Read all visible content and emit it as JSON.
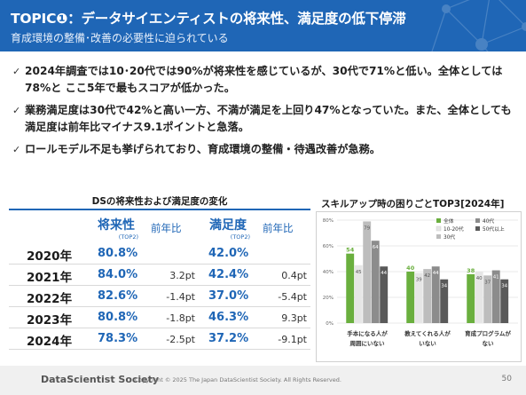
{
  "header": {
    "title": "TOPIC❶：データサイエンティストの将来性、満足度の低下停滞",
    "subtitle": "育成環境の整備･改善の必要性に迫られている"
  },
  "bullets": [
    "2024年調査では10･20代では90%が将来性を感じているが、30代で71%と低い。全体としては78%と ここ5年で最もスコアが低かった。",
    "業務満足度は30代で42%と高い一方、不満が満足を上回り47%となっていた。また、全体としても満足度は前年比マイナス9.1ポイントと急落。",
    "ロールモデル不足も挙げられており、育成環境の整備・待遇改善が急務。"
  ],
  "table": {
    "title": "DSの将来性および満足度の変化",
    "headers": {
      "future": "将来性",
      "future_sub": "(TOP2)",
      "yoy1": "前年比",
      "satisfaction": "満足度",
      "satisfaction_sub": "(TOP2)",
      "yoy2": "前年比"
    },
    "rows": [
      {
        "year": "2020年",
        "future": "80.8%",
        "yoy1": "",
        "satisfaction": "42.0%",
        "yoy2": ""
      },
      {
        "year": "2021年",
        "future": "84.0%",
        "yoy1": "3.2pt",
        "satisfaction": "42.4%",
        "yoy2": "0.4pt"
      },
      {
        "year": "2022年",
        "future": "82.6%",
        "yoy1": "-1.4pt",
        "satisfaction": "37.0%",
        "yoy2": "-5.4pt"
      },
      {
        "year": "2023年",
        "future": "80.8%",
        "yoy1": "-1.8pt",
        "satisfaction": "46.3%",
        "yoy2": "9.3pt"
      },
      {
        "year": "2024年",
        "future": "78.3%",
        "yoy1": "-2.5pt",
        "satisfaction": "37.2%",
        "yoy2": "-9.1pt"
      }
    ]
  },
  "chart_data": {
    "type": "bar",
    "title": "スキルアップ時の困りごとTOP3[2024年]",
    "categories": [
      "手本になる人が周囲にいない",
      "教えてくれる人がいない",
      "育成プログラムがない"
    ],
    "category_lines": [
      [
        "手本になる人が",
        "周囲にいない"
      ],
      [
        "教えてくれる人が",
        "いない"
      ],
      [
        "育成プログラムが",
        "ない"
      ]
    ],
    "series": [
      {
        "name": "全体",
        "values": [
          54,
          40,
          38
        ],
        "color": "#6aaf3e"
      },
      {
        "name": "10-20代",
        "values": [
          45,
          39,
          40
        ],
        "color": "#e6e6e6"
      },
      {
        "name": "30代",
        "values": [
          79,
          42,
          37
        ],
        "color": "#bdbdbd"
      },
      {
        "name": "40代",
        "values": [
          64,
          44,
          41
        ],
        "color": "#8c8c8c"
      },
      {
        "name": "50代以上",
        "values": [
          44,
          34,
          34
        ],
        "color": "#5a5a5a"
      }
    ],
    "ylim": [
      0,
      80
    ],
    "yticks": [
      "0%",
      "20%",
      "40%",
      "60%",
      "80%"
    ],
    "legend": "top-right",
    "grid": true
  },
  "footer": {
    "logo": "DataScientist Society",
    "copyright": "Copyright © 2025 The Japan DataScientist Society. All Rights Reserved.",
    "page": "50"
  }
}
